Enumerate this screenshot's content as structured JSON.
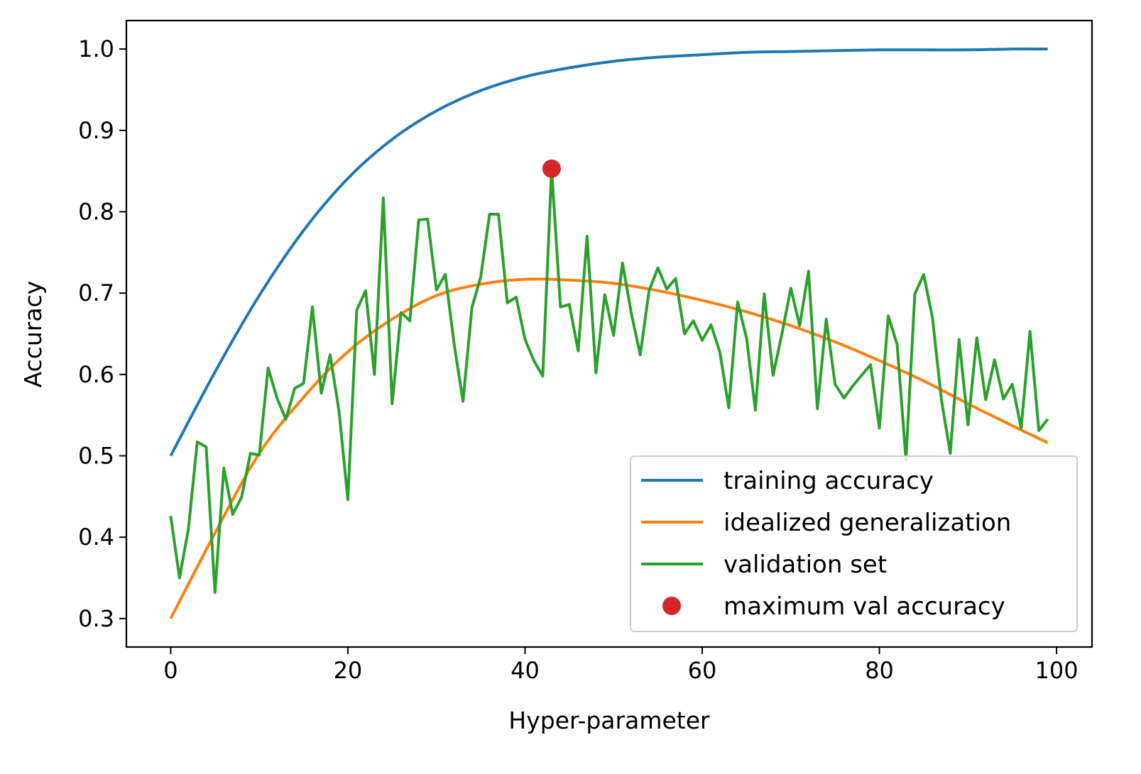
{
  "chart_data": {
    "type": "line",
    "title": "",
    "xlabel": "Hyper-parameter",
    "ylabel": "Accuracy",
    "xlim": [
      -5,
      104
    ],
    "ylim": [
      0.265,
      1.035
    ],
    "xticks": [
      0,
      20,
      40,
      60,
      80,
      100
    ],
    "xtick_labels": [
      "0",
      "20",
      "40",
      "60",
      "80",
      "100"
    ],
    "yticks": [
      0.3,
      0.4,
      0.5,
      0.6,
      0.7,
      0.8,
      0.9,
      1.0
    ],
    "ytick_labels": [
      "0.3",
      "0.4",
      "0.5",
      "0.6",
      "0.7",
      "0.8",
      "0.9",
      "1.0"
    ],
    "grid": false,
    "legend_position": "lower-right",
    "series": [
      {
        "name": "training accuracy",
        "color": "#1f77b4",
        "x": [
          0,
          5,
          10,
          15,
          20,
          25,
          30,
          35,
          40,
          45,
          50,
          55,
          60,
          65,
          70,
          75,
          80,
          85,
          90,
          95,
          99
        ],
        "y": [
          0.5,
          0.603,
          0.697,
          0.777,
          0.841,
          0.889,
          0.924,
          0.949,
          0.966,
          0.977,
          0.985,
          0.99,
          0.993,
          0.996,
          0.997,
          0.998,
          0.999,
          0.999,
          0.999,
          1.0,
          1.0
        ]
      },
      {
        "name": "idealized generalization",
        "color": "#ff7f0e",
        "x": [
          0,
          5,
          10,
          15,
          20,
          25,
          30,
          35,
          40,
          45,
          50,
          55,
          60,
          65,
          70,
          75,
          80,
          85,
          90,
          95,
          99
        ],
        "y": [
          0.3,
          0.405,
          0.503,
          0.572,
          0.628,
          0.668,
          0.697,
          0.711,
          0.717,
          0.716,
          0.712,
          0.703,
          0.691,
          0.677,
          0.66,
          0.64,
          0.617,
          0.592,
          0.564,
          0.537,
          0.516
        ]
      },
      {
        "name": "validation set",
        "color": "#2ca02c",
        "x_start": 0,
        "y": [
          0.426,
          0.35,
          0.41,
          0.517,
          0.511,
          0.332,
          0.485,
          0.428,
          0.449,
          0.503,
          0.501,
          0.608,
          0.571,
          0.545,
          0.583,
          0.589,
          0.683,
          0.577,
          0.624,
          0.555,
          0.446,
          0.679,
          0.703,
          0.6,
          0.817,
          0.564,
          0.676,
          0.666,
          0.79,
          0.791,
          0.704,
          0.723,
          0.637,
          0.567,
          0.682,
          0.72,
          0.797,
          0.797,
          0.688,
          0.695,
          0.643,
          0.617,
          0.598,
          0.853,
          0.683,
          0.686,
          0.629,
          0.77,
          0.602,
          0.698,
          0.648,
          0.737,
          0.675,
          0.624,
          0.703,
          0.731,
          0.705,
          0.718,
          0.65,
          0.666,
          0.642,
          0.661,
          0.627,
          0.559,
          0.689,
          0.645,
          0.556,
          0.699,
          0.599,
          0.65,
          0.706,
          0.66,
          0.727,
          0.558,
          0.668,
          0.588,
          0.571,
          0.586,
          0.599,
          0.612,
          0.534,
          0.672,
          0.637,
          0.495,
          0.699,
          0.723,
          0.669,
          0.569,
          0.503,
          0.643,
          0.538,
          0.645,
          0.569,
          0.618,
          0.57,
          0.588,
          0.534,
          0.653,
          0.531,
          0.545
        ]
      },
      {
        "name": "maximum val accuracy",
        "color": "#d62728",
        "marker": "circle",
        "x": [
          43
        ],
        "y": [
          0.853
        ]
      }
    ]
  }
}
